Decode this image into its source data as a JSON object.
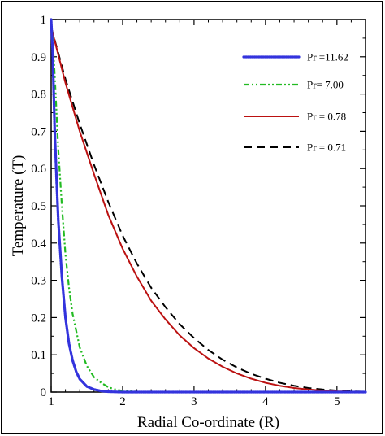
{
  "chart_data": {
    "type": "line",
    "xlabel": "Radial Co-ordinate (R)",
    "ylabel": "Temperature (T)",
    "xlim": [
      1,
      5.4
    ],
    "ylim": [
      0,
      1
    ],
    "x_ticks": [
      1,
      2,
      3,
      4,
      5
    ],
    "y_ticks": [
      0,
      0.1,
      0.2,
      0.3,
      0.4,
      0.5,
      0.6,
      0.7,
      0.8,
      0.9,
      1
    ],
    "x_tick_labels": [
      "1",
      "2",
      "3",
      "4",
      "5"
    ],
    "y_tick_labels": [
      "0",
      "0.1",
      "0.2",
      "0.3",
      "0.4",
      "0.5",
      "0.6",
      "0.7",
      "0.8",
      "0.9",
      "1"
    ],
    "grid": false,
    "legend_position": "top-right",
    "series": [
      {
        "name": "Pr =11.62",
        "color": "#3333dd",
        "style": "dotted-thick",
        "x": [
          1.0,
          1.02,
          1.05,
          1.08,
          1.1,
          1.15,
          1.2,
          1.25,
          1.3,
          1.35,
          1.4,
          1.5,
          1.6,
          1.7,
          1.8,
          2.0,
          3.0,
          4.0,
          5.0,
          5.4
        ],
        "y": [
          1.0,
          0.92,
          0.7,
          0.55,
          0.46,
          0.31,
          0.2,
          0.13,
          0.085,
          0.055,
          0.035,
          0.015,
          0.007,
          0.003,
          0.001,
          0.0,
          0.0,
          0.0,
          0.0,
          0.0
        ]
      },
      {
        "name": "Pr= 7.00",
        "color": "#22bb22",
        "style": "dash-dot-dot",
        "x": [
          1.0,
          1.02,
          1.05,
          1.08,
          1.1,
          1.15,
          1.2,
          1.25,
          1.3,
          1.4,
          1.5,
          1.6,
          1.7,
          1.8,
          1.9,
          2.0,
          2.2,
          3.0,
          4.0,
          5.0,
          5.4
        ],
        "y": [
          1.0,
          0.95,
          0.85,
          0.73,
          0.65,
          0.5,
          0.37,
          0.28,
          0.21,
          0.12,
          0.07,
          0.04,
          0.025,
          0.013,
          0.007,
          0.003,
          0.001,
          0.0,
          0.0,
          0.0,
          0.0
        ]
      },
      {
        "name": "Pr = 0.78",
        "color": "#bb1111",
        "style": "solid",
        "x": [
          1.0,
          1.2,
          1.4,
          1.6,
          1.8,
          2.0,
          2.2,
          2.4,
          2.6,
          2.8,
          3.0,
          3.2,
          3.4,
          3.6,
          3.8,
          4.0,
          4.2,
          4.4,
          4.6,
          4.8,
          5.0,
          5.2,
          5.4
        ],
        "y": [
          0.98,
          0.83,
          0.7,
          0.585,
          0.475,
          0.385,
          0.31,
          0.245,
          0.195,
          0.152,
          0.118,
          0.09,
          0.068,
          0.05,
          0.036,
          0.025,
          0.017,
          0.011,
          0.007,
          0.004,
          0.002,
          0.001,
          0.0
        ]
      },
      {
        "name": "Pr = 0.71",
        "color": "#000000",
        "style": "dashed",
        "x": [
          1.0,
          1.2,
          1.4,
          1.6,
          1.8,
          2.0,
          2.2,
          2.4,
          2.6,
          2.8,
          3.0,
          3.2,
          3.4,
          3.6,
          3.8,
          4.0,
          4.2,
          4.4,
          4.6,
          4.8,
          5.0,
          5.2,
          5.4
        ],
        "y": [
          0.98,
          0.84,
          0.72,
          0.61,
          0.51,
          0.42,
          0.345,
          0.28,
          0.228,
          0.182,
          0.145,
          0.113,
          0.087,
          0.066,
          0.049,
          0.036,
          0.025,
          0.017,
          0.011,
          0.007,
          0.004,
          0.002,
          0.001
        ]
      }
    ]
  }
}
